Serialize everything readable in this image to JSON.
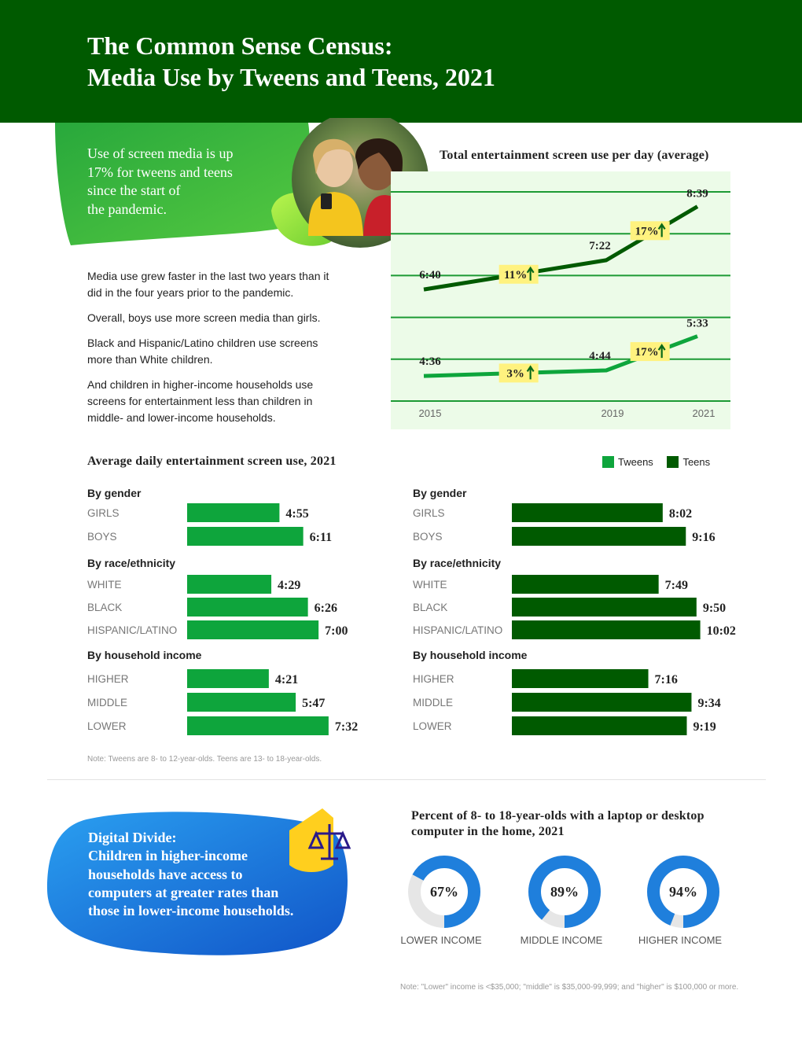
{
  "header": {
    "title_line1": "The Common Sense Census:",
    "title_line2": "Media Use by Tweens and Teens, 2021"
  },
  "callout": {
    "lines": [
      "Use of screen media is up",
      "17% for tweens and teens",
      "since the start of",
      "the pandemic."
    ]
  },
  "intro_paragraphs": [
    "Media use grew faster in the last two years than it did in the four years prior to the pandemic.",
    "Overall, boys use more screen media than girls.",
    "Black and Hispanic/Latino children use screens more than White children.",
    "And children in higher-income households use screens for entertainment less than children in middle- and lower-income households."
  ],
  "colors": {
    "header_green": "#005a00",
    "tweens": "#0ea53c",
    "teens": "#005a00",
    "chart_bg": "#ecfbe8",
    "badge": "#fff27f",
    "blue": "#1f7fdc"
  },
  "chart_data": [
    {
      "type": "line",
      "title": "Total entertainment screen use per day (average)",
      "x": [
        "2015",
        "2019",
        "2021"
      ],
      "x_numeric": [
        2015,
        2019,
        2021
      ],
      "y_unit": "hours:minutes",
      "series": [
        {
          "key": "teens",
          "values_minutes": [
            400,
            442,
            519
          ],
          "value_labels": [
            "6:40",
            "7:22",
            "8:39"
          ]
        },
        {
          "key": "tweens",
          "values_minutes": [
            276,
            284,
            333
          ],
          "value_labels": [
            "4:36",
            "4:44",
            "5:33"
          ]
        }
      ],
      "annotations": [
        {
          "series": "teens",
          "between": [
            "2015",
            "2019"
          ],
          "text": "11%"
        },
        {
          "series": "teens",
          "between": [
            "2019",
            "2021"
          ],
          "text": "17%"
        },
        {
          "series": "tweens",
          "between": [
            "2015",
            "2019"
          ],
          "text": "3%"
        },
        {
          "series": "tweens",
          "between": [
            "2019",
            "2021"
          ],
          "text": "17%"
        }
      ],
      "grid": true
    },
    {
      "type": "bar",
      "title": "Average daily entertainment screen use, 2021",
      "legend": [
        "Tweens",
        "Teens"
      ],
      "groups": [
        {
          "heading": "By gender",
          "categories": [
            "GIRLS",
            "BOYS"
          ],
          "tweens": {
            "minutes": [
              295,
              371
            ],
            "labels": [
              "4:55",
              "6:11"
            ]
          },
          "teens": {
            "minutes": [
              482,
              556
            ],
            "labels": [
              "8:02",
              "9:16"
            ]
          }
        },
        {
          "heading": "By race/ethnicity",
          "categories": [
            "WHITE",
            "BLACK",
            "HISPANIC/LATINO"
          ],
          "tweens": {
            "minutes": [
              269,
              386,
              420
            ],
            "labels": [
              "4:29",
              "6:26",
              "7:00"
            ]
          },
          "teens": {
            "minutes": [
              469,
              590,
              602
            ],
            "labels": [
              "7:49",
              "9:50",
              "10:02"
            ]
          }
        },
        {
          "heading": "By household income",
          "categories": [
            "HIGHER",
            "MIDDLE",
            "LOWER"
          ],
          "tweens": {
            "minutes": [
              261,
              347,
              452
            ],
            "labels": [
              "4:21",
              "5:47",
              "7:32"
            ]
          },
          "teens": {
            "minutes": [
              436,
              574,
              559
            ],
            "labels": [
              "7:16",
              "9:34",
              "9:19"
            ]
          }
        }
      ],
      "note": "Note: Tweens are 8- to 12-year-olds. Teens are 13- to 18-year-olds."
    },
    {
      "type": "pie",
      "title_line1": "Percent of 8- to 18-year-olds with a laptop or desktop",
      "title_line2": "computer in the home, 2021",
      "items": [
        {
          "label": "LOWER INCOME",
          "value": 67,
          "text": "67%"
        },
        {
          "label": "MIDDLE INCOME",
          "value": 89,
          "text": "89%"
        },
        {
          "label": "HIGHER INCOME",
          "value": 94,
          "text": "94%"
        }
      ],
      "note": "Note: \"Lower\" income is <$35,000; \"middle\" is $35,000-99,999; and \"higher\" is $100,000 or more."
    }
  ],
  "digital_divide": {
    "lines": [
      "Digital Divide:",
      "Children in higher-income",
      "households have access to",
      "computers at greater rates than",
      "those in lower-income households."
    ]
  }
}
